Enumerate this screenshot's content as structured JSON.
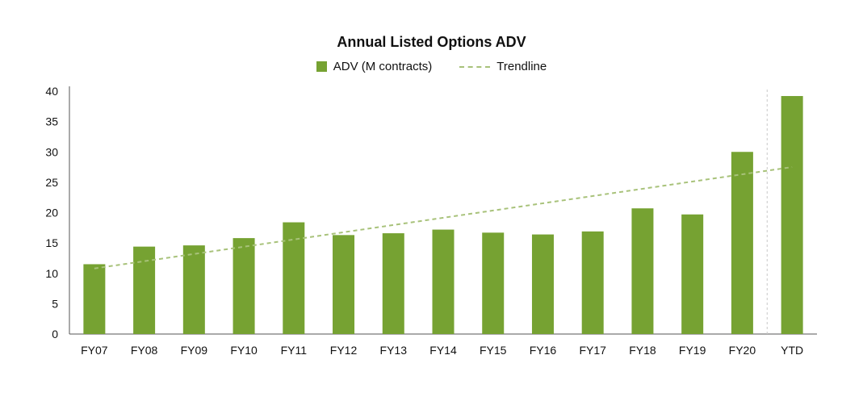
{
  "chart_data": {
    "type": "bar",
    "title": "Annual Listed Options ADV",
    "categories": [
      "FY07",
      "FY08",
      "FY09",
      "FY10",
      "FY11",
      "FY12",
      "FY13",
      "FY14",
      "FY15",
      "FY16",
      "FY17",
      "FY18",
      "FY19",
      "FY20",
      "YTD"
    ],
    "series": [
      {
        "name": "ADV (M contracts)",
        "color": "#76a232",
        "values": [
          11.5,
          14.4,
          14.6,
          15.8,
          18.4,
          16.3,
          16.6,
          17.2,
          16.7,
          16.4,
          16.9,
          20.7,
          19.7,
          30.0,
          39.2
        ]
      }
    ],
    "trendline": {
      "name": "Trendline",
      "color": "#a8c27a",
      "start": {
        "category": "FY07",
        "value": 10.8
      },
      "end": {
        "category": "YTD",
        "value": 27.5
      }
    },
    "ylim": [
      0,
      40
    ],
    "yticks": [
      0,
      5,
      10,
      15,
      20,
      25,
      30,
      35,
      40
    ],
    "xlabel": "",
    "ylabel": "",
    "grid": false,
    "legend_position": "top-center",
    "separator_before": "YTD"
  }
}
